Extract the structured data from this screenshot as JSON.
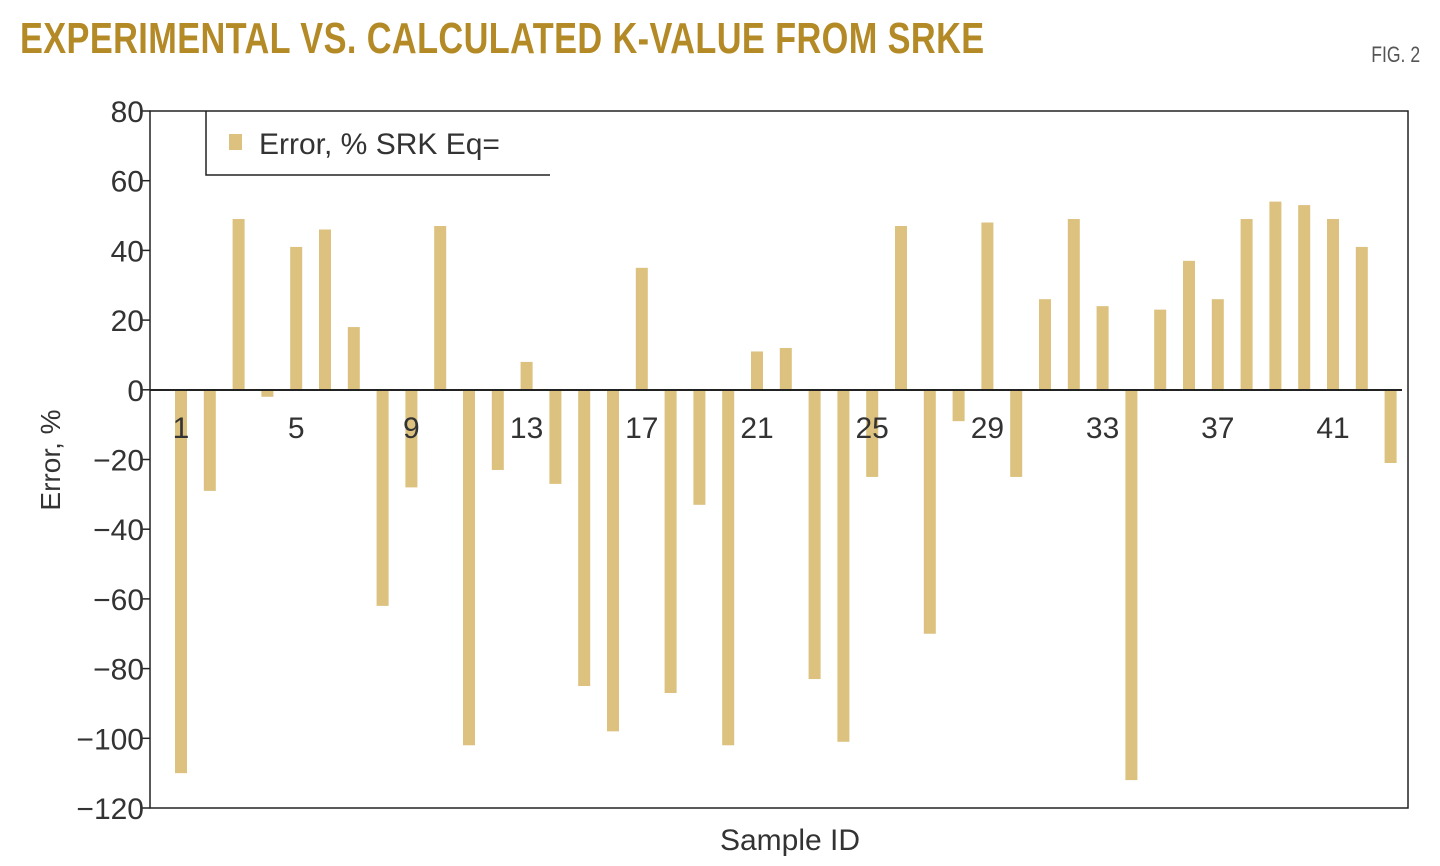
{
  "chart_data": {
    "type": "bar",
    "title": "EXPERIMENTAL VS. CALCULATED K-VALUE FROM SRKE",
    "figure_label": "FIG. 2",
    "xlabel": "Sample ID",
    "ylabel": "Error, %",
    "ylim": [
      -120,
      80
    ],
    "yticks": [
      80,
      60,
      40,
      20,
      0,
      -20,
      -40,
      -60,
      -80,
      -100,
      -120
    ],
    "xtick_labels": [
      "1",
      "5",
      "9",
      "13",
      "17",
      "21",
      "25",
      "29",
      "33",
      "37",
      "41"
    ],
    "legend_position": "top-left",
    "grid": false,
    "bar_color": "#dcc17f",
    "title_color": "#b38a26",
    "categories": [
      1,
      2,
      3,
      4,
      5,
      6,
      7,
      8,
      9,
      10,
      11,
      12,
      13,
      14,
      15,
      16,
      17,
      18,
      19,
      20,
      21,
      22,
      23,
      24,
      25,
      26,
      27,
      28,
      29,
      30,
      31,
      32,
      33,
      34,
      35,
      36,
      37,
      38,
      39,
      40,
      41,
      42,
      43
    ],
    "series": [
      {
        "name": "Error, % SRK Eq=",
        "values": [
          -110,
          -29,
          49,
          -2,
          41,
          46,
          18,
          -62,
          -28,
          47,
          -102,
          -23,
          8,
          -27,
          -85,
          -98,
          35,
          -87,
          -33,
          -102,
          11,
          12,
          -83,
          -101,
          -25,
          47,
          -70,
          -9,
          48,
          -25,
          26,
          49,
          24,
          -112,
          23,
          37,
          26,
          49,
          54,
          53,
          49,
          41,
          -21
        ]
      }
    ]
  }
}
